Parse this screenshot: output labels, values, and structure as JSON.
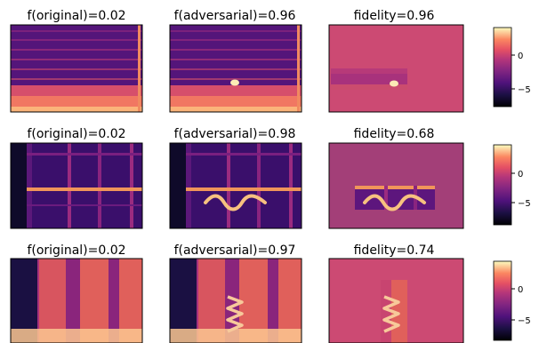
{
  "chart_data": {
    "type": "heatmap",
    "colormap": "magma",
    "colorbar_ticks": [
      "0",
      "−5"
    ],
    "rows": [
      {
        "titles": [
          "f(original)=0.02",
          "f(adversarial)=0.96",
          "fidelity=0.96"
        ],
        "f_original": 0.02,
        "f_adversarial": 0.96,
        "fidelity": 0.96,
        "panels": [
          "spectrogram",
          "spectrogram with small blob",
          "blob on masked band"
        ]
      },
      {
        "titles": [
          "f(original)=0.02",
          "f(adversarial)=0.98",
          "fidelity=0.68"
        ],
        "f_original": 0.02,
        "f_adversarial": 0.98,
        "fidelity": 0.68,
        "panels": [
          "spectrogram",
          "spectrogram with wave stroke",
          "wave stroke on masked band"
        ]
      },
      {
        "titles": [
          "f(original)=0.02",
          "f(adversarial)=0.97",
          "fidelity=0.74"
        ],
        "f_original": 0.02,
        "f_adversarial": 0.97,
        "fidelity": 0.74,
        "panels": [
          "spectrogram",
          "spectrogram with zigzag stroke",
          "zigzag stroke on masked column"
        ]
      }
    ],
    "colors": {
      "background_mask": "#cc4a73",
      "row2_mask": "#a33f78",
      "stroke": "#fbd4a0"
    }
  }
}
